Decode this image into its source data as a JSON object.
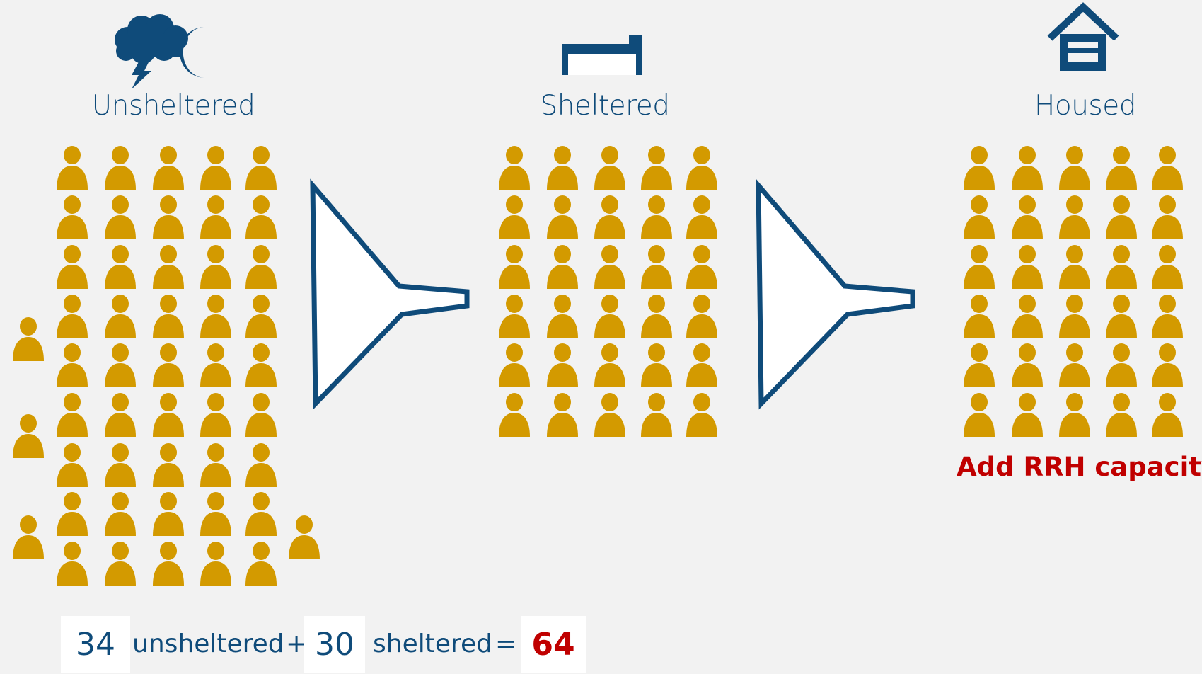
{
  "stages": {
    "unsheltered": {
      "label": "Unsheltered",
      "icon": "storm-cloud-moon-icon"
    },
    "sheltered": {
      "label": "Sheltered",
      "icon": "bed-icon"
    },
    "housed": {
      "label": "Housed",
      "icon": "house-icon"
    }
  },
  "callout": {
    "text": "Add RRH capacity",
    "color": "#c00000"
  },
  "equation": {
    "unsheltered_count": "34",
    "unsheltered_text": "unsheltered",
    "plus": "+",
    "sheltered_count": "30",
    "sheltered_text": "sheltered",
    "equals": "=",
    "total": "64"
  },
  "colors": {
    "person": "#d39a00",
    "navy": "#0f4b7a",
    "background": "#f2f2f2"
  }
}
